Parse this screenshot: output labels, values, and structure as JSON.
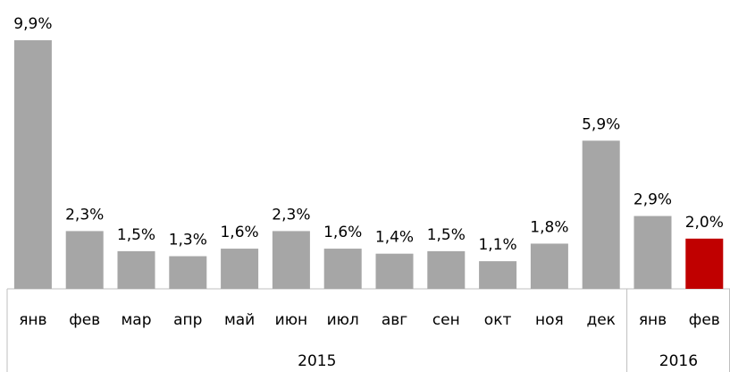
{
  "chart_data": {
    "type": "bar",
    "groups": [
      {
        "name": "2015",
        "categories": [
          "янв",
          "фев",
          "мар",
          "апр",
          "май",
          "июн",
          "июл",
          "авг",
          "сен",
          "окт",
          "ноя",
          "дек"
        ]
      },
      {
        "name": "2016",
        "categories": [
          "янв",
          "фев"
        ]
      }
    ],
    "values": [
      9.9,
      2.3,
      1.5,
      1.3,
      1.6,
      2.3,
      1.6,
      1.4,
      1.5,
      1.1,
      1.8,
      5.9,
      2.9,
      2.0
    ],
    "value_labels": [
      "9,9%",
      "2,3%",
      "1,5%",
      "1,3%",
      "1,6%",
      "2,3%",
      "1,6%",
      "1,4%",
      "1,5%",
      "1,1%",
      "1,8%",
      "5,9%",
      "2,9%",
      "2,0%"
    ],
    "colors": [
      "#a6a6a6",
      "#a6a6a6",
      "#a6a6a6",
      "#a6a6a6",
      "#a6a6a6",
      "#a6a6a6",
      "#a6a6a6",
      "#a6a6a6",
      "#a6a6a6",
      "#a6a6a6",
      "#a6a6a6",
      "#a6a6a6",
      "#a6a6a6",
      "#c00000"
    ]
  }
}
